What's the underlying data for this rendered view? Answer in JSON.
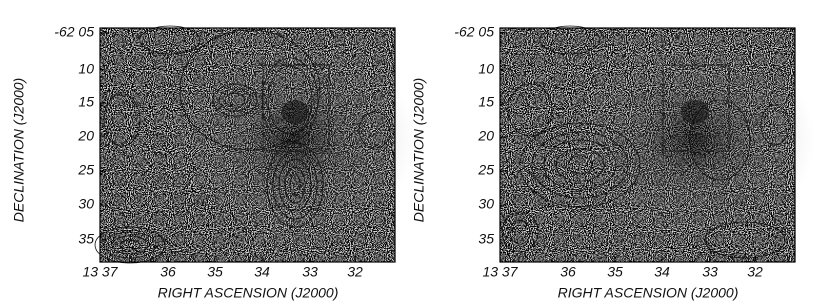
{
  "panels": [
    {
      "y_tick_labels": [
        "-62 05",
        "10",
        "15",
        "20",
        "25",
        "30",
        "35"
      ],
      "x_tick_labels": [
        "13 37",
        "36",
        "35",
        "34",
        "33",
        "32"
      ],
      "x_axis_label": "RIGHT ASCENSION (J2000)",
      "y_axis_label": "DECLINATION (J2000)"
    },
    {
      "y_tick_labels": [
        "-62 05",
        "10",
        "15",
        "20",
        "25",
        "30",
        "35"
      ],
      "x_tick_labels": [
        "13 37",
        "36",
        "35",
        "34",
        "33",
        "32"
      ],
      "x_axis_label": "RIGHT ASCENSION (J2000)",
      "y_axis_label": "DECLINATION (J2000)"
    }
  ]
}
